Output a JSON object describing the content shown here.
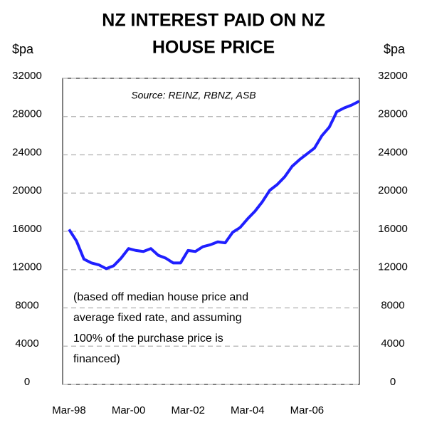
{
  "chart_data": {
    "type": "line",
    "title": [
      "NZ INTEREST PAID ON  NZ",
      "HOUSE PRICE"
    ],
    "y_label": "$pa",
    "y2_label": "$pa",
    "annotation": "Source: REINZ, RBNZ, ASB",
    "note": [
      "(based off median house price and",
      "average fixed rate, and assuming",
      "100% of the purchase price is",
      "financed)"
    ],
    "categories": [
      "Mar-98",
      null,
      null,
      null,
      null,
      null,
      null,
      null,
      "Mar-00",
      null,
      null,
      null,
      null,
      null,
      null,
      null,
      "Mar-02",
      null,
      null,
      null,
      null,
      null,
      null,
      null,
      "Mar-04",
      null,
      null,
      null,
      null,
      null,
      null,
      null,
      "Mar-06",
      null,
      null,
      null,
      null,
      null,
      null,
      null
    ],
    "series": [
      {
        "name": "Interest paid",
        "color": "#1f1fff",
        "values": [
          16200,
          15000,
          13100,
          12700,
          12500,
          12100,
          12400,
          13200,
          14200,
          14000,
          13900,
          14200,
          13500,
          13200,
          12700,
          12700,
          14000,
          13900,
          14400,
          14600,
          14900,
          14800,
          15900,
          16400,
          17300,
          18100,
          19100,
          20300,
          20900,
          21700,
          22800,
          23500,
          24100,
          24700,
          26000,
          26900,
          28500,
          28900,
          29200,
          29600
        ]
      }
    ],
    "ylim": [
      0,
      32000
    ],
    "yticks": [
      0,
      4000,
      8000,
      12000,
      16000,
      20000,
      24000,
      28000,
      32000
    ],
    "y2lim": [
      0,
      32000
    ],
    "y2ticks": [
      0,
      4000,
      8000,
      12000,
      16000,
      20000,
      24000,
      28000,
      32000
    ],
    "grid": true
  }
}
